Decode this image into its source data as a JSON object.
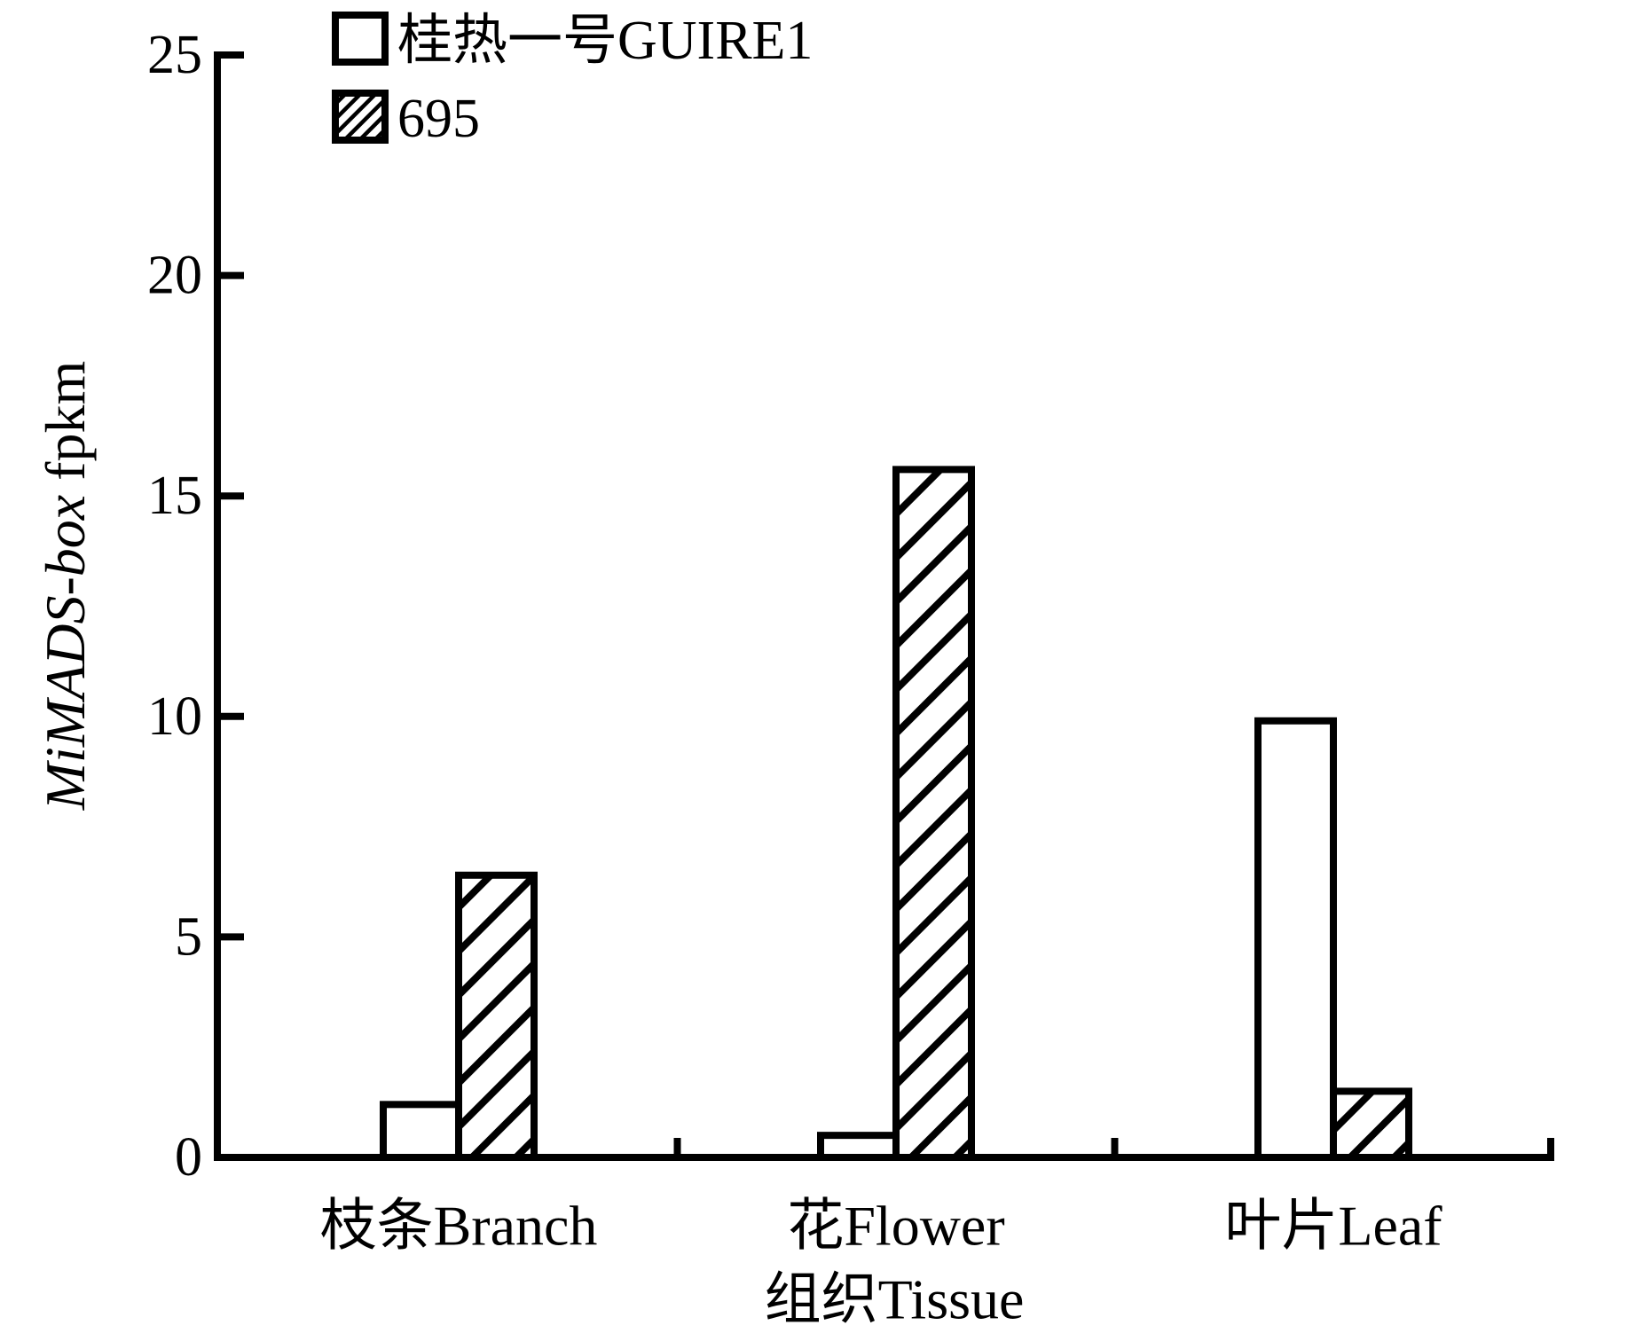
{
  "figure": {
    "background_color": "#ffffff",
    "ink_color": "#000000"
  },
  "chart_data": {
    "type": "bar",
    "title": "",
    "categories": [
      "枝条Branch",
      "花Flower",
      "叶片Leaf"
    ],
    "series": [
      {
        "name": "桂热一号GUIRE1",
        "style": "open-white",
        "values": [
          1.2,
          0.5,
          9.9
        ]
      },
      {
        "name": "695",
        "style": "diagonal-hatch",
        "values": [
          6.4,
          15.6,
          1.5
        ]
      }
    ],
    "xlabel": "组织Tissue",
    "ylabel_italic": "MiMADS-box",
    "ylabel_regular": " fpkm",
    "ylabel_full": "MiMADS-box fpkm",
    "ylim": [
      0,
      25
    ],
    "ytick_step": 5,
    "ytick_labels": [
      "0",
      "5",
      "10",
      "15",
      "20",
      "25"
    ],
    "grid": false,
    "legend_position": "top-left-inside"
  }
}
